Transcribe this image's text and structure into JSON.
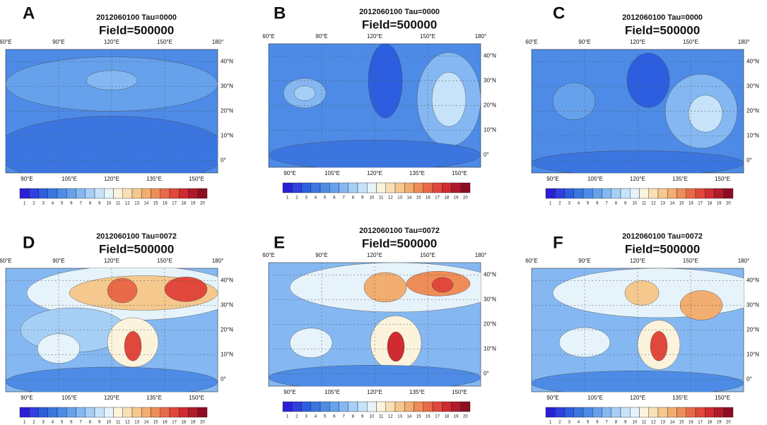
{
  "panels": [
    {
      "letter": "A",
      "title": "2012060100   Tau=0000",
      "field": "Field=500000"
    },
    {
      "letter": "B",
      "title": "2012060100   Tau=0000",
      "field": "Field=500000"
    },
    {
      "letter": "C",
      "title": "2012060100   Tau=0000",
      "field": "Field=500000"
    },
    {
      "letter": "D",
      "title": "2012060100   Tau=0072",
      "field": "Field=500000"
    },
    {
      "letter": "E",
      "title": "2012060100   Tau=0072",
      "field": "Field=500000"
    },
    {
      "letter": "F",
      "title": "2012060100   Tau=0072",
      "field": "Field=500000"
    }
  ],
  "lon_top": [
    "60°E",
    "90°E",
    "120°E",
    "150°E",
    "180°"
  ],
  "lon_bottom": [
    "90°E",
    "105°E",
    "120°E",
    "135°E",
    "150°E"
  ],
  "lat": [
    "40°N",
    "30°N",
    "20°N",
    "10°N",
    "0°"
  ],
  "colorbar_labels": [
    1,
    2,
    3,
    4,
    5,
    6,
    7,
    8,
    9,
    10,
    11,
    12,
    13,
    14,
    15,
    16,
    17,
    18,
    19,
    20
  ],
  "colorbar_colors": [
    "#2b1fd6",
    "#2f3fe0",
    "#2d5ee0",
    "#3b76e0",
    "#4d8be6",
    "#66a1ec",
    "#85b8f2",
    "#a6cff6",
    "#c6e3fa",
    "#e6f3fb",
    "#fbf3dc",
    "#f8e0b4",
    "#f5c88e",
    "#f2ad70",
    "#ee8d58",
    "#e96a48",
    "#e0483b",
    "#cf2b30",
    "#b01a2a",
    "#8c0d22"
  ]
}
